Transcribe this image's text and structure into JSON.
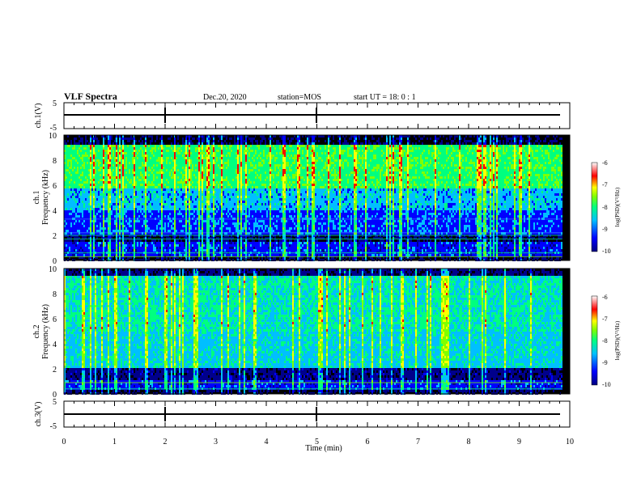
{
  "header": {
    "title": "VLF Spectra",
    "date": "Dec.20, 2020",
    "station": "station=MOS",
    "start_ut": "start  UT =   18: 0  : 1"
  },
  "colors": {
    "spectrogram_scale": [
      "#000000",
      "#00008b",
      "#0000ff",
      "#00bfff",
      "#00ff7f",
      "#7fff00",
      "#ffff00",
      "#ff0000"
    ],
    "colorbar_scale": [
      "#000080",
      "#0000ff",
      "#00c0ff",
      "#00ff80",
      "#80ff00",
      "#ffff00",
      "#ff0000",
      "#ffffff"
    ]
  },
  "chart_data": [
    {
      "type": "line",
      "ylabel": "ch.1(V)",
      "ylim": [
        -5,
        5
      ],
      "yticks": [
        "5",
        "-5"
      ],
      "x": [
        0,
        10
      ],
      "y": [
        0,
        0
      ]
    },
    {
      "type": "heatmap",
      "ylabel": "ch.1\nFrequency (kHz)",
      "ylim": [
        0,
        10
      ],
      "yticks": [
        "0",
        "2",
        "4",
        "6",
        "8",
        "10"
      ],
      "xlim": [
        0,
        10
      ],
      "data_end_min": 9.85,
      "description_band": "broadband VLF emission, strongest 6-9 kHz",
      "colorbar": {
        "label": "log(PSD)(V^2/Hz)",
        "ticks": [
          "-6",
          "-7",
          "-8",
          "-9",
          "-10"
        ],
        "range": [
          -10,
          -6
        ]
      }
    },
    {
      "type": "heatmap",
      "ylabel": "ch.2\nFrequency (kHz)",
      "ylim": [
        0,
        10
      ],
      "yticks": [
        "0",
        "2",
        "4",
        "6",
        "8",
        "10"
      ],
      "xlim": [
        0,
        10
      ],
      "data_end_min": 9.85,
      "colorbar": {
        "label": "log(PSD)(V^2/Hz)",
        "ticks": [
          "-6",
          "-7",
          "-8",
          "-9",
          "-10"
        ],
        "range": [
          -10,
          -6
        ]
      }
    },
    {
      "type": "line",
      "ylabel": "ch.3(V)",
      "ylim": [
        -5,
        5
      ],
      "yticks": [
        "5",
        "-5"
      ],
      "x": [
        0,
        10
      ],
      "y": [
        0,
        0
      ]
    }
  ],
  "xaxis": {
    "label": "Time (min)",
    "ticks": [
      "0",
      "1",
      "2",
      "3",
      "4",
      "5",
      "6",
      "7",
      "8",
      "9",
      "10"
    ]
  },
  "colorbar1": {
    "label": "log(PSD)(V²/Hz)",
    "ticks": [
      "-6",
      "-7",
      "-8",
      "-9",
      "-10"
    ]
  },
  "colorbar2": {
    "label": "log(PSD)(V²/Hz)",
    "ticks": [
      "-6",
      "-7",
      "-8",
      "-9",
      "-10"
    ]
  }
}
